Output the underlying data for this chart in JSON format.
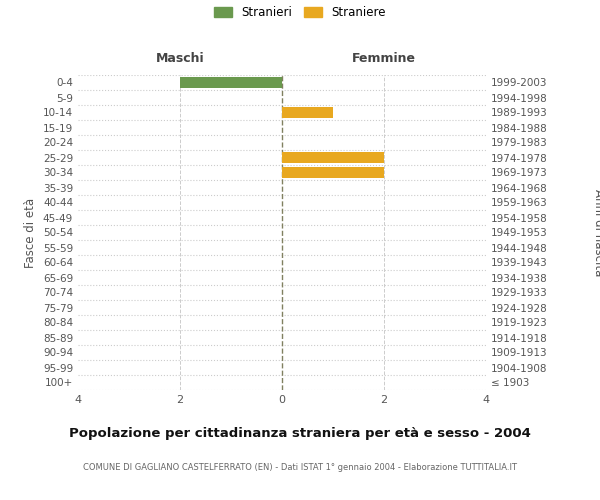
{
  "age_groups": [
    "100+",
    "95-99",
    "90-94",
    "85-89",
    "80-84",
    "75-79",
    "70-74",
    "65-69",
    "60-64",
    "55-59",
    "50-54",
    "45-49",
    "40-44",
    "35-39",
    "30-34",
    "25-29",
    "20-24",
    "15-19",
    "10-14",
    "5-9",
    "0-4"
  ],
  "birth_years": [
    "≤ 1903",
    "1904-1908",
    "1909-1913",
    "1914-1918",
    "1919-1923",
    "1924-1928",
    "1929-1933",
    "1934-1938",
    "1939-1943",
    "1944-1948",
    "1949-1953",
    "1954-1958",
    "1959-1963",
    "1964-1968",
    "1969-1973",
    "1974-1978",
    "1979-1983",
    "1984-1988",
    "1989-1993",
    "1994-1998",
    "1999-2003"
  ],
  "maschi": [
    0,
    0,
    0,
    0,
    0,
    0,
    0,
    0,
    0,
    0,
    0,
    0,
    0,
    0,
    0,
    0,
    0,
    0,
    0,
    0,
    2
  ],
  "femmine": [
    0,
    0,
    0,
    0,
    0,
    0,
    0,
    0,
    0,
    0,
    0,
    0,
    0,
    0,
    2,
    2,
    0,
    0,
    1,
    0,
    0
  ],
  "maschi_color": "#6a994e",
  "femmine_color": "#e8a820",
  "background_color": "#ffffff",
  "grid_color": "#cccccc",
  "center_line_color": "#808060",
  "title": "Popolazione per cittadinanza straniera per età e sesso - 2004",
  "subtitle": "COMUNE DI GAGLIANO CASTELFERRATO (EN) - Dati ISTAT 1° gennaio 2004 - Elaborazione TUTTITALIA.IT",
  "xlabel_left": "Maschi",
  "xlabel_right": "Femmine",
  "ylabel_left": "Fasce di età",
  "ylabel_right": "Anni di nascita",
  "legend_stranieri": "Stranieri",
  "legend_straniere": "Straniere",
  "xlim": 4,
  "bar_height": 0.75
}
